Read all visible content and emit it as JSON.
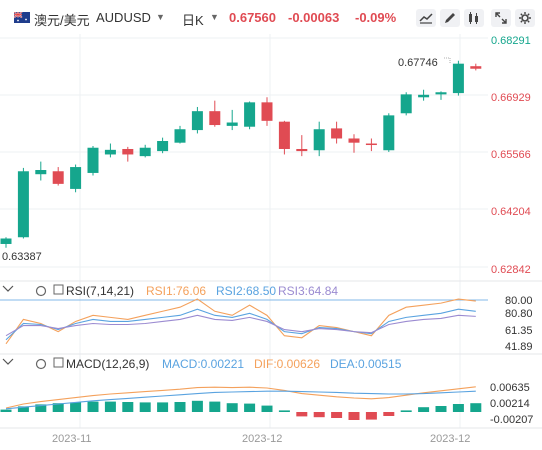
{
  "header": {
    "pair_name": "澳元/美元",
    "code": "AUDUSD",
    "period": "日K",
    "price": "0.67560",
    "change": "-0.00063",
    "change_pct": "-0.09%",
    "tools": [
      "line-chart-icon",
      "pen-icon",
      "grid-icon",
      "expand-icon",
      "settings-icon"
    ]
  },
  "colors": {
    "up": "#15a68d",
    "down": "#e04b53",
    "rsi1": "#f4a15c",
    "rsi2": "#5aa3e0",
    "rsi3": "#9b8bd1",
    "macd": "#5aa3e0",
    "dif": "#f4a15c",
    "dea": "#5aa3e0"
  },
  "chart_data": {
    "type": "candlestick",
    "price_axis": [
      "0.68291",
      "0.66929",
      "0.65566",
      "0.64204",
      "0.62842"
    ],
    "ylim": [
      0.62842,
      0.68291
    ],
    "high_label": "0.67746",
    "low_label": "0.63387",
    "x_labels": [
      "2023-11",
      "2023-12",
      "2023-12"
    ],
    "candles": [
      {
        "o": 0.6339,
        "h": 0.6355,
        "l": 0.633,
        "c": 0.6352
      },
      {
        "o": 0.6355,
        "h": 0.652,
        "l": 0.6352,
        "c": 0.6512
      },
      {
        "o": 0.6505,
        "h": 0.6535,
        "l": 0.649,
        "c": 0.6515
      },
      {
        "o": 0.6512,
        "h": 0.6522,
        "l": 0.6478,
        "c": 0.6482
      },
      {
        "o": 0.647,
        "h": 0.6528,
        "l": 0.6462,
        "c": 0.6522
      },
      {
        "o": 0.6508,
        "h": 0.6572,
        "l": 0.6502,
        "c": 0.6568
      },
      {
        "o": 0.6552,
        "h": 0.6578,
        "l": 0.6545,
        "c": 0.6563
      },
      {
        "o": 0.6565,
        "h": 0.657,
        "l": 0.6535,
        "c": 0.6552
      },
      {
        "o": 0.6548,
        "h": 0.6575,
        "l": 0.6545,
        "c": 0.6568
      },
      {
        "o": 0.656,
        "h": 0.6592,
        "l": 0.6555,
        "c": 0.6584
      },
      {
        "o": 0.658,
        "h": 0.662,
        "l": 0.6578,
        "c": 0.6612
      },
      {
        "o": 0.661,
        "h": 0.6665,
        "l": 0.6602,
        "c": 0.6655
      },
      {
        "o": 0.6655,
        "h": 0.668,
        "l": 0.6618,
        "c": 0.6622
      },
      {
        "o": 0.662,
        "h": 0.6658,
        "l": 0.661,
        "c": 0.6628
      },
      {
        "o": 0.6618,
        "h": 0.6678,
        "l": 0.6612,
        "c": 0.6676
      },
      {
        "o": 0.6676,
        "h": 0.6688,
        "l": 0.662,
        "c": 0.6632
      },
      {
        "o": 0.663,
        "h": 0.6632,
        "l": 0.6552,
        "c": 0.6565
      },
      {
        "o": 0.6565,
        "h": 0.6598,
        "l": 0.6548,
        "c": 0.656
      },
      {
        "o": 0.6562,
        "h": 0.663,
        "l": 0.6548,
        "c": 0.6612
      },
      {
        "o": 0.6614,
        "h": 0.663,
        "l": 0.6578,
        "c": 0.659
      },
      {
        "o": 0.659,
        "h": 0.66,
        "l": 0.6556,
        "c": 0.658
      },
      {
        "o": 0.6578,
        "h": 0.659,
        "l": 0.656,
        "c": 0.6575
      },
      {
        "o": 0.6562,
        "h": 0.665,
        "l": 0.6558,
        "c": 0.6645
      },
      {
        "o": 0.665,
        "h": 0.67,
        "l": 0.6645,
        "c": 0.6695
      },
      {
        "o": 0.6688,
        "h": 0.6706,
        "l": 0.668,
        "c": 0.6694
      },
      {
        "o": 0.6695,
        "h": 0.6702,
        "l": 0.6682,
        "c": 0.67
      },
      {
        "o": 0.6698,
        "h": 0.6775,
        "l": 0.6692,
        "c": 0.6768
      },
      {
        "o": 0.6762,
        "h": 0.6768,
        "l": 0.6752,
        "c": 0.6756
      }
    ],
    "rsi": {
      "label": "RSI(7,14,21)",
      "values_text": [
        "RSI1:76.06",
        "RSI2:68.50",
        "RSI3:64.84"
      ],
      "axis": [
        "80.00",
        "80.80",
        "61.35",
        "41.89"
      ],
      "ylim": [
        30,
        85
      ],
      "rsi1": [
        38,
        62,
        58,
        50,
        60,
        66,
        64,
        62,
        66,
        70,
        74,
        82,
        70,
        66,
        76,
        66,
        46,
        44,
        56,
        54,
        50,
        46,
        66,
        74,
        76,
        78,
        82,
        80
      ],
      "rsi2": [
        42,
        58,
        57,
        52,
        58,
        62,
        60,
        60,
        62,
        64,
        66,
        72,
        66,
        64,
        68,
        62,
        50,
        48,
        54,
        53,
        50,
        48,
        60,
        64,
        66,
        68,
        72,
        70
      ],
      "rsi3": [
        46,
        56,
        56,
        53,
        56,
        58,
        57,
        57,
        58,
        60,
        62,
        66,
        62,
        61,
        64,
        60,
        52,
        50,
        53,
        52,
        50,
        49,
        57,
        60,
        62,
        63,
        66,
        65
      ]
    },
    "macd": {
      "label": "MACD(12,26,9)",
      "values_text": [
        "MACD:0.00221",
        "DIF:0.00626",
        "DEA:0.00515"
      ],
      "axis": [
        "0.00635",
        "0.00214",
        "-0.00207"
      ],
      "ylim": [
        -0.0035,
        0.0095
      ],
      "hist": [
        0.0006,
        0.0014,
        0.0019,
        0.0022,
        0.0024,
        0.0026,
        0.0026,
        0.0025,
        0.0024,
        0.0024,
        0.0025,
        0.0028,
        0.0026,
        0.0022,
        0.0021,
        0.0016,
        0.0004,
        -0.0011,
        -0.0013,
        -0.0015,
        -0.002,
        -0.0019,
        -0.001,
        0.0004,
        0.0012,
        0.0015,
        0.002,
        0.0022
      ],
      "dif": [
        0.001,
        0.002,
        0.0026,
        0.0031,
        0.0036,
        0.0041,
        0.0045,
        0.0048,
        0.0051,
        0.0054,
        0.0057,
        0.0061,
        0.0062,
        0.0061,
        0.0062,
        0.006,
        0.0054,
        0.0046,
        0.0042,
        0.0038,
        0.0035,
        0.0033,
        0.0036,
        0.0042,
        0.0048,
        0.0053,
        0.0058,
        0.0063
      ],
      "dea": [
        0.0008,
        0.0012,
        0.0016,
        0.002,
        0.0024,
        0.0028,
        0.0031,
        0.0034,
        0.0037,
        0.004,
        0.0043,
        0.0046,
        0.0049,
        0.005,
        0.0051,
        0.0052,
        0.0052,
        0.0051,
        0.005,
        0.0049,
        0.0047,
        0.0046,
        0.0045,
        0.0045,
        0.0046,
        0.0048,
        0.005,
        0.0052
      ]
    }
  }
}
